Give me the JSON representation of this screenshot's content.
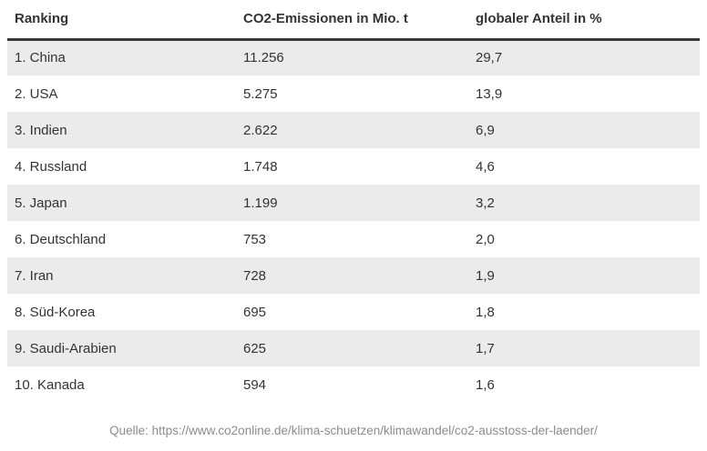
{
  "colors": {
    "header_text": "#333333",
    "header_underline": "#3a3a3a",
    "row_stripe": "#ebebeb",
    "body_text": "#333333",
    "source_text": "#8c8c8c",
    "background": "#ffffff"
  },
  "chart_data": {
    "type": "table",
    "title": "",
    "columns": [
      "Ranking",
      "CO2-Emissionen in Mio. t",
      "globaler Anteil in %"
    ],
    "rows": [
      {
        "rank": 1,
        "country": "China",
        "ranking_label": "1. China",
        "emissions_mio_t": 11256,
        "emissions_label": "11.256",
        "global_share_pct": 29.7,
        "share_label": "29,7"
      },
      {
        "rank": 2,
        "country": "USA",
        "ranking_label": "2. USA",
        "emissions_mio_t": 5275,
        "emissions_label": "5.275",
        "global_share_pct": 13.9,
        "share_label": "13,9"
      },
      {
        "rank": 3,
        "country": "Indien",
        "ranking_label": "3. Indien",
        "emissions_mio_t": 2622,
        "emissions_label": "2.622",
        "global_share_pct": 6.9,
        "share_label": "6,9"
      },
      {
        "rank": 4,
        "country": "Russland",
        "ranking_label": "4. Russland",
        "emissions_mio_t": 1748,
        "emissions_label": "1.748",
        "global_share_pct": 4.6,
        "share_label": "4,6"
      },
      {
        "rank": 5,
        "country": "Japan",
        "ranking_label": "5. Japan",
        "emissions_mio_t": 1199,
        "emissions_label": "1.199",
        "global_share_pct": 3.2,
        "share_label": "3,2"
      },
      {
        "rank": 6,
        "country": "Deutschland",
        "ranking_label": "6. Deutschland",
        "emissions_mio_t": 753,
        "emissions_label": "753",
        "global_share_pct": 2.0,
        "share_label": "2,0"
      },
      {
        "rank": 7,
        "country": "Iran",
        "ranking_label": "7. Iran",
        "emissions_mio_t": 728,
        "emissions_label": "728",
        "global_share_pct": 1.9,
        "share_label": "1,9"
      },
      {
        "rank": 8,
        "country": "Süd-Korea",
        "ranking_label": "8. Süd-Korea",
        "emissions_mio_t": 695,
        "emissions_label": "695",
        "global_share_pct": 1.8,
        "share_label": "1,8"
      },
      {
        "rank": 9,
        "country": "Saudi-Arabien",
        "ranking_label": "9. Saudi-Arabien",
        "emissions_mio_t": 625,
        "emissions_label": "625",
        "global_share_pct": 1.7,
        "share_label": "1,7"
      },
      {
        "rank": 10,
        "country": "Kanada",
        "ranking_label": "10. Kanada",
        "emissions_mio_t": 594,
        "emissions_label": "594",
        "global_share_pct": 1.6,
        "share_label": "1,6"
      }
    ]
  },
  "footer": {
    "source_prefix": "Quelle: ",
    "source_url": "https://www.co2online.de/klima-schuetzen/klimawandel/co2-ausstoss-der-laender/"
  }
}
